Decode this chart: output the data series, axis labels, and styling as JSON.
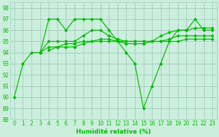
{
  "xlabel": "Humidité relative (%)",
  "background_color": "#cceedd",
  "grid_color": "#99ccbb",
  "line_color": "#00bb00",
  "xlim": [
    -0.5,
    23.5
  ],
  "ylim": [
    88,
    98.5
  ],
  "yticks": [
    88,
    89,
    90,
    91,
    92,
    93,
    94,
    95,
    96,
    97,
    98
  ],
  "xticks": [
    0,
    1,
    2,
    3,
    4,
    5,
    6,
    7,
    8,
    9,
    10,
    11,
    12,
    13,
    14,
    15,
    16,
    17,
    18,
    19,
    20,
    21,
    22,
    23
  ],
  "lines": [
    {
      "x": [
        0,
        1,
        2,
        3,
        4,
        5,
        6,
        7,
        8,
        9,
        10,
        11,
        12,
        13,
        14,
        15,
        16,
        17,
        18,
        19,
        20,
        21,
        22,
        23
      ],
      "y": [
        90,
        93,
        94,
        94,
        97,
        97,
        96,
        97,
        97,
        97,
        97,
        96,
        95,
        94,
        93,
        89,
        91,
        93,
        95,
        96,
        96,
        97,
        96,
        96
      ]
    },
    {
      "x": [
        3,
        4,
        5,
        6,
        7,
        8,
        9,
        10,
        11,
        12,
        13,
        14,
        15,
        16,
        17,
        18,
        19,
        20,
        21,
        22,
        23
      ],
      "y": [
        94,
        95,
        95,
        95,
        95,
        95.5,
        96,
        96,
        95.5,
        95.2,
        95,
        95,
        95,
        95,
        95.5,
        95.8,
        96,
        96,
        96.2,
        96.2,
        96.2
      ]
    },
    {
      "x": [
        3,
        4,
        5,
        6,
        7,
        8,
        9,
        10,
        11,
        12,
        13,
        14,
        15,
        16,
        17,
        18,
        19,
        20,
        21,
        22,
        23
      ],
      "y": [
        94,
        94.5,
        94.5,
        94.8,
        94.8,
        95,
        95,
        95.2,
        95.2,
        95,
        95,
        95,
        95,
        95,
        95,
        95.2,
        95.5,
        95.5,
        95.5,
        95.5,
        95.5
      ]
    },
    {
      "x": [
        4,
        5,
        6,
        7,
        8,
        9,
        10,
        11,
        12,
        13,
        14,
        15,
        16,
        17,
        18,
        19,
        20,
        21,
        22,
        23
      ],
      "y": [
        94.2,
        94.5,
        94.5,
        94.5,
        94.8,
        95,
        95,
        95,
        95,
        94.8,
        94.8,
        94.8,
        95,
        95,
        95,
        95,
        95.2,
        95.2,
        95.2,
        95.2
      ]
    }
  ]
}
